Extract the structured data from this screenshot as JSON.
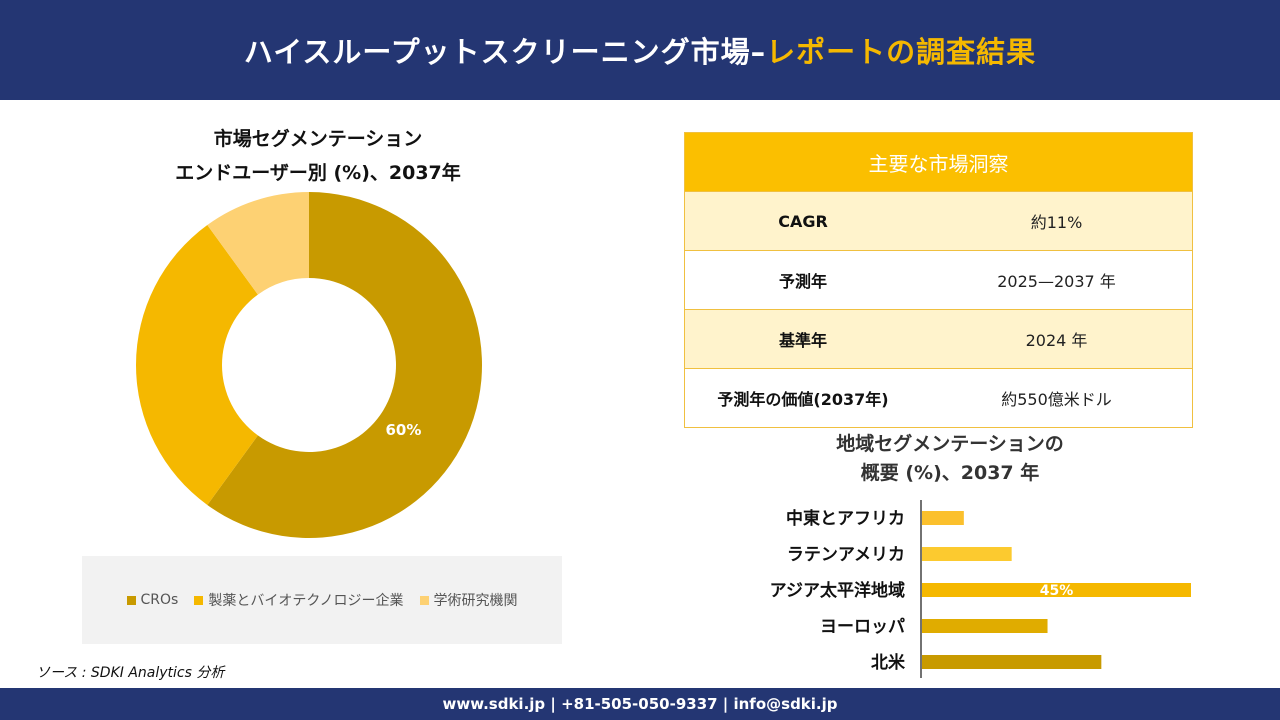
{
  "header": {
    "title_main": "ハイスループットスクリーニング市場–",
    "title_accent": "レポートの調査結果"
  },
  "colors": {
    "navy": "#243673",
    "accent": "#f5b800"
  },
  "donut": {
    "title_line1": "市場セグメンテーション",
    "title_line2": "エンドユーザー別 (%)、2037年"
  },
  "insights": {
    "title": "主要な市場洞察",
    "rows": [
      {
        "label": "CAGR",
        "value": "約11%"
      },
      {
        "label": "予測年",
        "value": "2025—2037 年"
      },
      {
        "label": "基準年",
        "value": "2024 年"
      },
      {
        "label": "予測年の価値(2037年)",
        "value": "約550億米ドル"
      }
    ]
  },
  "bar": {
    "title_line1": "地域セグメンテーションの",
    "title_line2": "概要 (%)、2037 年"
  },
  "source": "ソース : SDKI Analytics 分析",
  "footer": "www.sdki.jp | +81-505-050-9337 | info@sdki.jp",
  "chart_data": [
    {
      "type": "pie",
      "title": "市場セグメンテーション エンドユーザー別 (%)、2037年",
      "categories": [
        "CROs",
        "製薬とバイオテクノロジー企業",
        "学術研究機関"
      ],
      "values": [
        60,
        30,
        10
      ],
      "data_labels": [
        "60%",
        "",
        ""
      ],
      "colors": [
        "#c89a00",
        "#f5b800",
        "#fdd173"
      ],
      "legend_position": "bottom"
    },
    {
      "type": "bar",
      "orientation": "horizontal",
      "title": "地域セグメンテーションの概要 (%)、2037 年",
      "categories": [
        "中東とアフリカ",
        "ラテンアメリカ",
        "アジア太平洋地域",
        "ヨーロッパ",
        "北米"
      ],
      "values": [
        7,
        15,
        45,
        21,
        30
      ],
      "data_labels": [
        "",
        "",
        "45%",
        "",
        ""
      ],
      "colors": [
        "#fbc02d",
        "#fcca2f",
        "#f5b800",
        "#e0ac00",
        "#c89a00"
      ],
      "xlim": [
        0,
        45
      ]
    }
  ]
}
